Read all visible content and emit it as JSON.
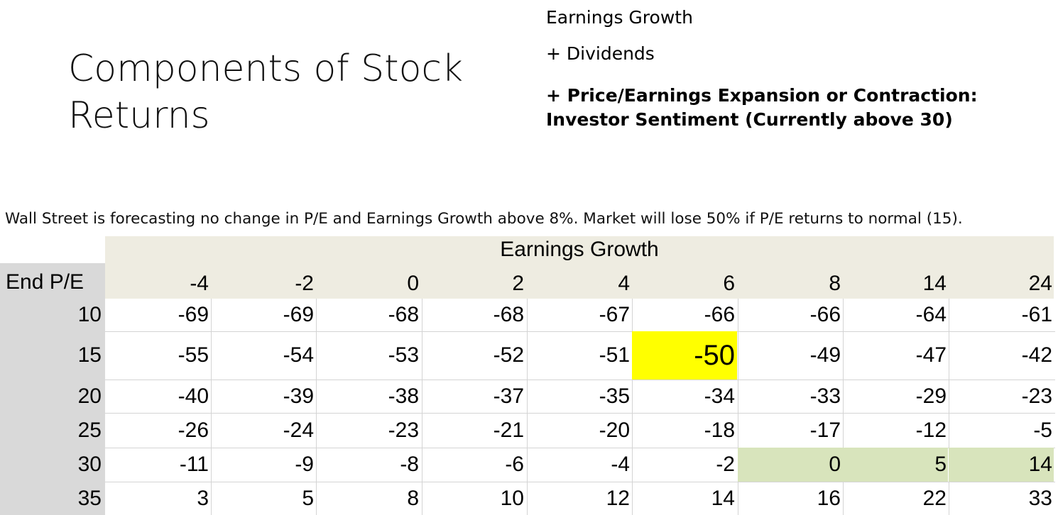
{
  "slide": {
    "title": "Components of Stock Returns",
    "bullets": [
      "Earnings Growth",
      "+ Dividends",
      "+ Price/Earnings  Expansion or Contraction:",
      "Investor Sentiment (Currently above 30)"
    ],
    "note": "Wall Street is forecasting no change in P/E and Earnings Growth above 8%. Market will lose 50% if P/E returns to normal (15)."
  },
  "table": {
    "column_group_title": "Earnings Growth",
    "row_header_title": "End P/E",
    "columns": [
      "-4",
      "-2",
      "0",
      "2",
      "4",
      "6",
      "8",
      "14",
      "24"
    ],
    "rows": [
      {
        "pe": "10",
        "values": [
          "-69",
          "-69",
          "-68",
          "-68",
          "-67",
          "-66",
          "-66",
          "-64",
          "-61"
        ]
      },
      {
        "pe": "15",
        "values": [
          "-55",
          "-54",
          "-53",
          "-52",
          "-51",
          "-50",
          "-49",
          "-47",
          "-42"
        ]
      },
      {
        "pe": "20",
        "values": [
          "-40",
          "-39",
          "-38",
          "-37",
          "-35",
          "-34",
          "-33",
          "-29",
          "-23"
        ]
      },
      {
        "pe": "25",
        "values": [
          "-26",
          "-24",
          "-23",
          "-21",
          "-20",
          "-18",
          "-17",
          "-12",
          "-5"
        ]
      },
      {
        "pe": "30",
        "values": [
          "-11",
          "-9",
          "-8",
          "-6",
          "-4",
          "-2",
          "0",
          "5",
          "14"
        ]
      },
      {
        "pe": "35",
        "values": [
          "3",
          "5",
          "8",
          "10",
          "12",
          "14",
          "16",
          "22",
          "33"
        ]
      }
    ],
    "highlight_colors": {
      "yellow": "#ffff00",
      "green": "#d8e4bc",
      "header_bg": "#eeece1",
      "side_bg": "#d9d9d9"
    }
  }
}
